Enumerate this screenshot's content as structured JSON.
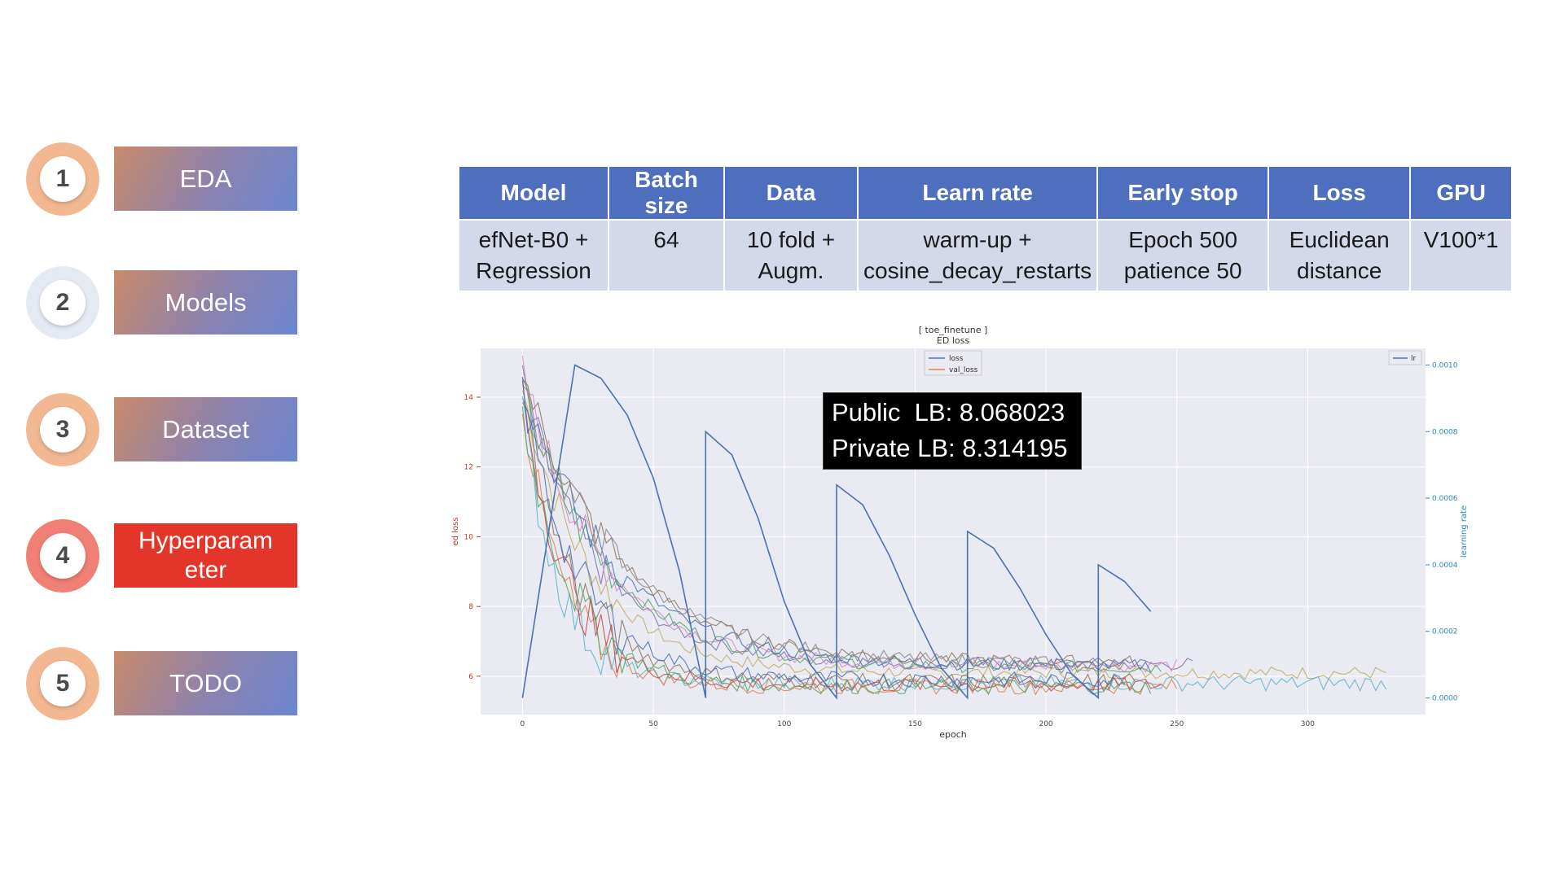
{
  "nav": [
    {
      "num": "1",
      "label": "EDA",
      "ring": "#f2b892",
      "active": false
    },
    {
      "num": "2",
      "label": "Models",
      "ring": "#e4e9f3",
      "active": false
    },
    {
      "num": "3",
      "label": "Dataset",
      "ring": "#f2b892",
      "active": false
    },
    {
      "num": "4",
      "label_lines": [
        "Hyperparam",
        "eter"
      ],
      "ring": "#f07f75",
      "active": true
    },
    {
      "num": "5",
      "label": "TODO",
      "ring": "#f2b892",
      "active": false
    }
  ],
  "table": {
    "headers": [
      "Model",
      "Batch size",
      "Data",
      "Learn rate",
      "Early stop",
      "Loss",
      "GPU"
    ],
    "cells": [
      [
        "efNet-B0 +",
        "Regression"
      ],
      [
        "64"
      ],
      [
        "10 fold +",
        "Augm."
      ],
      [
        "warm-up +",
        "cosine_decay_restarts"
      ],
      [
        "Epoch 500",
        "patience 50"
      ],
      [
        "Euclidean",
        "distance"
      ],
      [
        "V100*1"
      ]
    ],
    "header_color": "#4d6fbe",
    "cell_color": "#d4d9ea"
  },
  "leaderboard": {
    "public": "Public  LB: 8.068023",
    "private": "Private LB: 8.314195"
  },
  "chart_data": {
    "type": "line",
    "title": "[ toe_finetune ]",
    "subtitle": "ED loss",
    "xlabel": "epoch",
    "ylabel": "ed loss",
    "y2label": "learning rate",
    "xlim": [
      -16,
      345
    ],
    "ylim": [
      4.9,
      15.4
    ],
    "y2lim": [
      -5e-05,
      0.00105
    ],
    "xticks": [
      0,
      50,
      100,
      150,
      200,
      250,
      300
    ],
    "yticks": [
      6,
      8,
      10,
      12,
      14
    ],
    "y2ticks": [
      "0.0000",
      "0.0002",
      "0.0004",
      "0.0006",
      "0.0008",
      "0.0010"
    ],
    "grid": true,
    "legend_left": {
      "placement": "top-center",
      "entries": [
        "loss",
        "val_loss"
      ]
    },
    "legend_right": {
      "placement": "top-right",
      "entries": [
        "lr"
      ]
    },
    "colors": {
      "loss": "#4c72b0",
      "val_loss": "#dd8452",
      "lr": "#4c72b0",
      "axis_left": "#c0392b",
      "axis_right": "#2e86c1"
    },
    "lr_series": {
      "name": "lr",
      "x": [
        0,
        20,
        30,
        40,
        50,
        60,
        70,
        70,
        80,
        90,
        100,
        110,
        120,
        120,
        130,
        140,
        150,
        160,
        170,
        170,
        180,
        190,
        200,
        210,
        220,
        220,
        230,
        240
      ],
      "y": [
        0.0,
        0.001,
        0.00096,
        0.00085,
        0.00066,
        0.00038,
        0.0,
        0.0008,
        0.00073,
        0.00054,
        0.00029,
        0.0001,
        0.0,
        0.00064,
        0.00058,
        0.00043,
        0.00025,
        9e-05,
        0.0,
        0.0005,
        0.00045,
        0.00033,
        0.00019,
        7e-05,
        0.0,
        0.0004,
        0.00035,
        0.00026
      ]
    },
    "loss_series": [
      {
        "end": 330,
        "floor": 6.1,
        "color": "#c4ad66"
      },
      {
        "end": 256,
        "floor": 6.35,
        "color": "#8172b3"
      },
      {
        "end": 250,
        "floor": 6.3,
        "color": "#da8bc3"
      },
      {
        "end": 245,
        "floor": 6.25,
        "color": "#55a868"
      },
      {
        "end": 240,
        "floor": 6.3,
        "color": "#4c72b0"
      },
      {
        "end": 235,
        "floor": 6.4,
        "color": "#937860"
      },
      {
        "end": 230,
        "floor": 6.35,
        "color": "#8c8c8c"
      }
    ],
    "val_series": [
      {
        "end": 330,
        "floor": 5.8,
        "color": "#64b5cd"
      },
      {
        "end": 250,
        "floor": 5.7,
        "color": "#dd8452"
      },
      {
        "end": 245,
        "floor": 5.75,
        "color": "#c44e52"
      },
      {
        "end": 240,
        "floor": 5.7,
        "color": "#55a868"
      },
      {
        "end": 235,
        "floor": 5.85,
        "color": "#937860"
      },
      {
        "end": 230,
        "floor": 5.9,
        "color": "#4c72b0"
      }
    ]
  }
}
